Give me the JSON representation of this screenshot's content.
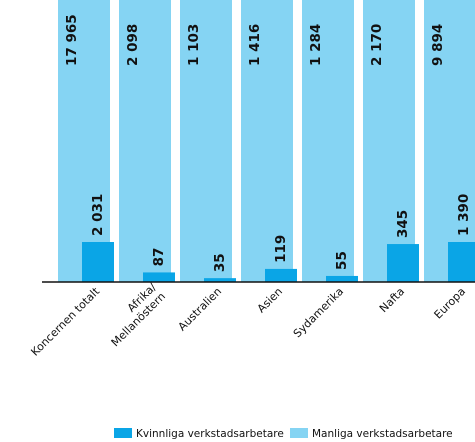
{
  "chart_data": {
    "type": "bar",
    "categories": [
      "Koncernen totalt",
      "Afrika/\nMellanöstern",
      "Australien",
      "Asien",
      "Sydamerika",
      "Nafta",
      "Europa"
    ],
    "series": [
      {
        "name": "Kvinnliga verkstadsarbetare",
        "values": [
          2031,
          87,
          35,
          119,
          55,
          345,
          1390
        ],
        "labels": [
          "2 031",
          "87",
          "35",
          "119",
          "55",
          "345",
          "1 390"
        ]
      },
      {
        "name": "Manliga verkstadsarbetare",
        "values": [
          17965,
          2098,
          1103,
          1416,
          1284,
          2170,
          9894
        ],
        "labels": [
          "17 965",
          "2 098",
          "1 103",
          "1 416",
          "1 284",
          "2 170",
          "9 894"
        ]
      }
    ],
    "colors": {
      "female": "#0aa5e6",
      "male": "#85d4f3"
    },
    "axis_break": true,
    "legend_position": "bottom"
  }
}
